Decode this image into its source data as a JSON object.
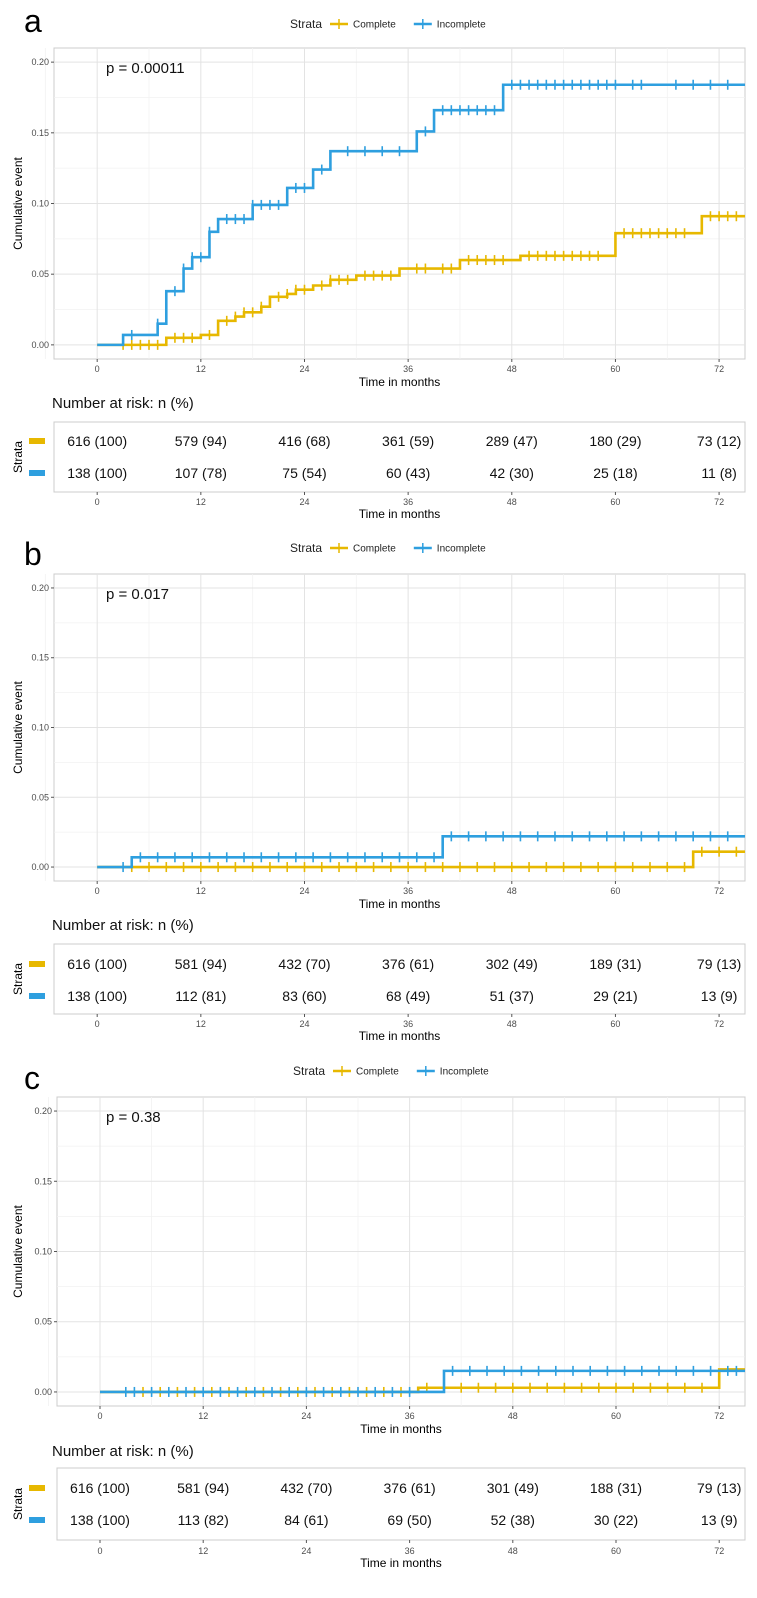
{
  "chart_data": [
    {
      "panel_label": "a",
      "type": "line",
      "chart_style": "kaplan-meier cumulative event step curve",
      "legend_title": "Strata",
      "legend_position": "top",
      "pvalue": "p = 0.00011",
      "xlabel": "Time in months",
      "ylabel": "Cumulative event",
      "xlim": [
        -5,
        75
      ],
      "ylim": [
        -0.01,
        0.21
      ],
      "xticks": [
        0,
        12,
        24,
        36,
        48,
        60,
        72
      ],
      "yticks": [
        "0.00",
        "0.05",
        "0.10",
        "0.15",
        "0.20"
      ],
      "grid": true,
      "series": [
        {
          "name": "Complete",
          "color": "#E7B800",
          "steps": [
            [
              0,
              0
            ],
            [
              8,
              0.005
            ],
            [
              12,
              0.007
            ],
            [
              14,
              0.017
            ],
            [
              16,
              0.02
            ],
            [
              17,
              0.023
            ],
            [
              19,
              0.027
            ],
            [
              20,
              0.034
            ],
            [
              22,
              0.036
            ],
            [
              23,
              0.039
            ],
            [
              25,
              0.042
            ],
            [
              27,
              0.046
            ],
            [
              30,
              0.049
            ],
            [
              35,
              0.054
            ],
            [
              42,
              0.06
            ],
            [
              49,
              0.063
            ],
            [
              60,
              0.079
            ],
            [
              70,
              0.091
            ],
            [
              75,
              0.091
            ]
          ],
          "censor_times": [
            3,
            4,
            5,
            6,
            7,
            9,
            10,
            11,
            13,
            15,
            16,
            17,
            18,
            19,
            21,
            22,
            23,
            24,
            26,
            27,
            28,
            29,
            31,
            32,
            33,
            34,
            37,
            38,
            40,
            41,
            43,
            44,
            45,
            46,
            47,
            50,
            51,
            52,
            53,
            54,
            55,
            56,
            57,
            58,
            61,
            62,
            63,
            64,
            65,
            66,
            67,
            68,
            71,
            72,
            73,
            74
          ]
        },
        {
          "name": "Incomplete",
          "color": "#2E9FDF",
          "steps": [
            [
              0,
              0
            ],
            [
              3,
              0.007
            ],
            [
              7,
              0.015
            ],
            [
              8,
              0.038
            ],
            [
              10,
              0.054
            ],
            [
              11,
              0.062
            ],
            [
              13,
              0.08
            ],
            [
              14,
              0.089
            ],
            [
              18,
              0.099
            ],
            [
              22,
              0.111
            ],
            [
              25,
              0.124
            ],
            [
              27,
              0.137
            ],
            [
              37,
              0.151
            ],
            [
              39,
              0.166
            ],
            [
              47,
              0.184
            ],
            [
              75,
              0.184
            ]
          ],
          "censor_times": [
            4,
            7,
            9,
            10,
            11,
            12,
            13,
            15,
            16,
            17,
            18,
            19,
            20,
            21,
            23,
            24,
            26,
            29,
            31,
            33,
            35,
            38,
            40,
            41,
            42,
            43,
            44,
            45,
            46,
            48,
            49,
            50,
            51,
            52,
            53,
            54,
            55,
            56,
            57,
            58,
            59,
            60,
            62,
            63,
            67,
            69,
            71,
            73
          ]
        }
      ],
      "risk_table": {
        "title": "Number at risk: n (%)",
        "strata_label": "Strata",
        "xlabel": "Time in months",
        "rows": [
          {
            "name": "Complete",
            "color": "#E7B800",
            "values": [
              "616 (100)",
              "579 (94)",
              "416 (68)",
              "361 (59)",
              "289 (47)",
              "180 (29)",
              "73 (12)"
            ]
          },
          {
            "name": "Incomplete",
            "color": "#2E9FDF",
            "values": [
              "138 (100)",
              "107 (78)",
              "75 (54)",
              "60 (43)",
              "42 (30)",
              "25 (18)",
              "11 (8)"
            ]
          }
        ]
      }
    },
    {
      "panel_label": "b",
      "type": "line",
      "chart_style": "kaplan-meier cumulative event step curve",
      "legend_title": "Strata",
      "legend_position": "top",
      "pvalue": "p = 0.017",
      "xlabel": "Time in months",
      "ylabel": "Cumulative event",
      "xlim": [
        -5,
        75
      ],
      "ylim": [
        -0.01,
        0.21
      ],
      "xticks": [
        0,
        12,
        24,
        36,
        48,
        60,
        72
      ],
      "yticks": [
        "0.00",
        "0.05",
        "0.10",
        "0.15",
        "0.20"
      ],
      "grid": true,
      "series": [
        {
          "name": "Complete",
          "color": "#E7B800",
          "steps": [
            [
              0,
              0
            ],
            [
              69,
              0.011
            ],
            [
              75,
              0.011
            ]
          ],
          "censor_times": [
            4,
            6,
            8,
            10,
            12,
            14,
            16,
            18,
            20,
            22,
            24,
            26,
            28,
            30,
            32,
            34,
            36,
            38,
            40,
            42,
            44,
            46,
            48,
            50,
            52,
            54,
            56,
            58,
            60,
            62,
            64,
            66,
            68,
            70,
            72,
            74
          ]
        },
        {
          "name": "Incomplete",
          "color": "#2E9FDF",
          "steps": [
            [
              0,
              0
            ],
            [
              4,
              0.007
            ],
            [
              40,
              0.022
            ],
            [
              75,
              0.022
            ]
          ],
          "censor_times": [
            3,
            5,
            7,
            9,
            11,
            13,
            15,
            17,
            19,
            21,
            23,
            25,
            27,
            29,
            31,
            33,
            35,
            37,
            39,
            41,
            43,
            45,
            47,
            49,
            51,
            53,
            55,
            57,
            59,
            61,
            63,
            65,
            67,
            69,
            71,
            73
          ]
        }
      ],
      "risk_table": {
        "title": "Number at risk: n (%)",
        "strata_label": "Strata",
        "xlabel": "Time in months",
        "rows": [
          {
            "name": "Complete",
            "color": "#E7B800",
            "values": [
              "616 (100)",
              "581 (94)",
              "432 (70)",
              "376 (61)",
              "302 (49)",
              "189 (31)",
              "79 (13)"
            ]
          },
          {
            "name": "Incomplete",
            "color": "#2E9FDF",
            "values": [
              "138 (100)",
              "112 (81)",
              "83 (60)",
              "68 (49)",
              "51 (37)",
              "29 (21)",
              "13 (9)"
            ]
          }
        ]
      }
    },
    {
      "panel_label": "c",
      "type": "line",
      "chart_style": "kaplan-meier cumulative event step curve",
      "legend_title": "Strata",
      "legend_position": "top",
      "pvalue": "p = 0.38",
      "xlabel": "Time in months",
      "ylabel": "Cumulative event",
      "xlim": [
        -5,
        75
      ],
      "ylim": [
        -0.01,
        0.21
      ],
      "xticks": [
        0,
        12,
        24,
        36,
        48,
        60,
        72
      ],
      "yticks": [
        "0.00",
        "0.05",
        "0.10",
        "0.15",
        "0.20"
      ],
      "grid": true,
      "series": [
        {
          "name": "Complete",
          "color": "#E7B800",
          "steps": [
            [
              0,
              0
            ],
            [
              37,
              0.003
            ],
            [
              72,
              0.016
            ],
            [
              75,
              0.016
            ]
          ],
          "censor_times": [
            5,
            7,
            9,
            11,
            13,
            15,
            17,
            19,
            21,
            23,
            25,
            27,
            29,
            31,
            33,
            35,
            38,
            40,
            42,
            44,
            46,
            48,
            50,
            52,
            54,
            56,
            58,
            60,
            62,
            64,
            66,
            68,
            70
          ]
        },
        {
          "name": "Incomplete",
          "color": "#2E9FDF",
          "steps": [
            [
              0,
              0
            ],
            [
              40,
              0.015
            ],
            [
              75,
              0.015
            ]
          ],
          "censor_times": [
            3,
            4,
            6,
            8,
            10,
            12,
            14,
            16,
            18,
            20,
            22,
            24,
            26,
            28,
            30,
            32,
            34,
            36,
            41,
            43,
            45,
            47,
            49,
            51,
            53,
            55,
            57,
            59,
            61,
            63,
            65,
            67,
            69,
            71,
            73,
            74
          ]
        }
      ],
      "risk_table": {
        "title": "Number at risk: n (%)",
        "strata_label": "Strata",
        "xlabel": "Time in months",
        "rows": [
          {
            "name": "Complete",
            "color": "#E7B800",
            "values": [
              "616 (100)",
              "581 (94)",
              "432 (70)",
              "376 (61)",
              "301 (49)",
              "188 (31)",
              "79 (13)"
            ]
          },
          {
            "name": "Incomplete",
            "color": "#2E9FDF",
            "values": [
              "138 (100)",
              "113 (82)",
              "84 (61)",
              "69 (50)",
              "52 (38)",
              "30 (22)",
              "13 (9)"
            ]
          }
        ]
      }
    }
  ]
}
